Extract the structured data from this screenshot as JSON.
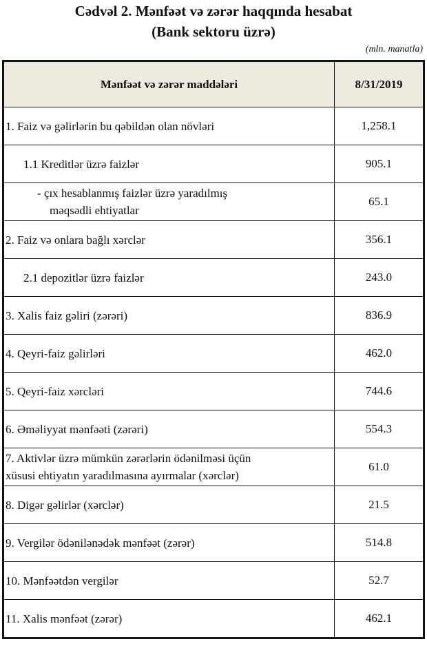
{
  "title": "Cədvəl 2. Mənfəət və zərər haqqında hesabat",
  "subtitle": "(Bank sektoru üzrə)",
  "unit": "(mln. manatla)",
  "table": {
    "headers": [
      "Mənfəət və zərər maddələri",
      "8/31/2019"
    ],
    "rows": [
      {
        "label": "1. Faiz və gəlirlərin bu qəbildən olan növləri",
        "value": "1,258.1"
      },
      {
        "label": "1.1 Kreditlər üzrə faizlər",
        "value": "905.1"
      },
      {
        "label": "-  çıx hesablanmış faizlər üzrə yaradılmış",
        "label2": "məqsədli ehtiyatlar",
        "value": "65.1"
      },
      {
        "label": "2. Faiz və onlara bağlı xərclər",
        "value": "356.1"
      },
      {
        "label": "2.1 depozitlər üzrə faizlər",
        "value": "243.0"
      },
      {
        "label": "3. Xalis faiz gəliri (zərəri)",
        "value": "836.9"
      },
      {
        "label": "4. Qeyri-faiz gəlirləri",
        "value": "462.0"
      },
      {
        "label": "5. Qeyri-faiz xərcləri",
        "value": "744.6"
      },
      {
        "label": "6. Əməliyyat mənfəəti (zərəri)",
        "value": "554.3"
      },
      {
        "label": "7. Aktivlər üzrə mümkün zərərlərin ödənilməsi üçün",
        "label2": "xüsusi ehtiyatın yaradılmasına ayırmalar (xərclər)",
        "value": "61.0"
      },
      {
        "label": "8. Digər gəlirlər (xərclər)",
        "value": "21.5"
      },
      {
        "label": "9. Vergilər ödənilənədək mənfəət (zərər)",
        "value": "514.8"
      },
      {
        "label": "10. Mənfəətdən vergilər",
        "value": "52.7"
      },
      {
        "label": "11. Xalis mənfəət (zərər)",
        "value": "462.1"
      }
    ]
  },
  "colors": {
    "header_bg": "#eeeadf",
    "border": "#111111"
  }
}
